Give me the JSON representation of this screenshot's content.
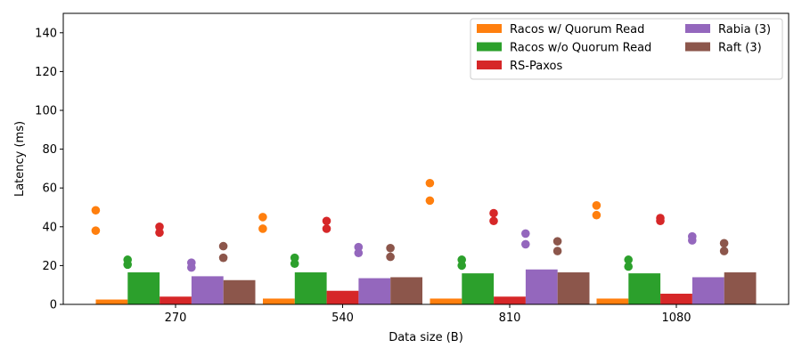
{
  "chart_data": {
    "type": "bar",
    "title": "",
    "xlabel": "Data size (B)",
    "ylabel": "Latency (ms)",
    "ylim": [
      0,
      150
    ],
    "yticks": [
      0,
      20,
      40,
      60,
      80,
      100,
      120,
      140
    ],
    "categories": [
      "270",
      "540",
      "810",
      "1080"
    ],
    "grid": false,
    "legend": {
      "placement": "top-right",
      "columns": 2
    },
    "series": [
      {
        "name": "Racos w/ Quorum Read",
        "color": "#ff7f0e",
        "values": [
          2.5,
          3,
          3,
          3
        ],
        "points": [
          [
            38,
            48.5
          ],
          [
            39,
            45
          ],
          [
            53.5,
            62.5
          ],
          [
            46,
            51
          ]
        ]
      },
      {
        "name": "Racos w/o Quorum Read",
        "color": "#2ca02c",
        "values": [
          16.5,
          16.5,
          16,
          16
        ],
        "points": [
          [
            20.5,
            23
          ],
          [
            21,
            24
          ],
          [
            20,
            23
          ],
          [
            19.5,
            23
          ]
        ]
      },
      {
        "name": "RS-Paxos",
        "color": "#d62728",
        "values": [
          4,
          7,
          4,
          5.5
        ],
        "points": [
          [
            37,
            40
          ],
          [
            39,
            43
          ],
          [
            43,
            47
          ],
          [
            43,
            44.5
          ]
        ]
      },
      {
        "name": "Rabia (3)",
        "color": "#9467bd",
        "values": [
          14.5,
          13.5,
          18,
          14
        ],
        "points": [
          [
            19,
            21.5
          ],
          [
            26.5,
            29.5
          ],
          [
            31,
            36.5
          ],
          [
            33,
            35
          ]
        ]
      },
      {
        "name": "Raft (3)",
        "color": "#8c564b",
        "values": [
          12.5,
          14,
          16.5,
          16.5
        ],
        "points": [
          [
            24,
            30
          ],
          [
            24.5,
            29
          ],
          [
            27.5,
            32.5
          ],
          [
            27.5,
            31.5
          ]
        ]
      }
    ]
  }
}
